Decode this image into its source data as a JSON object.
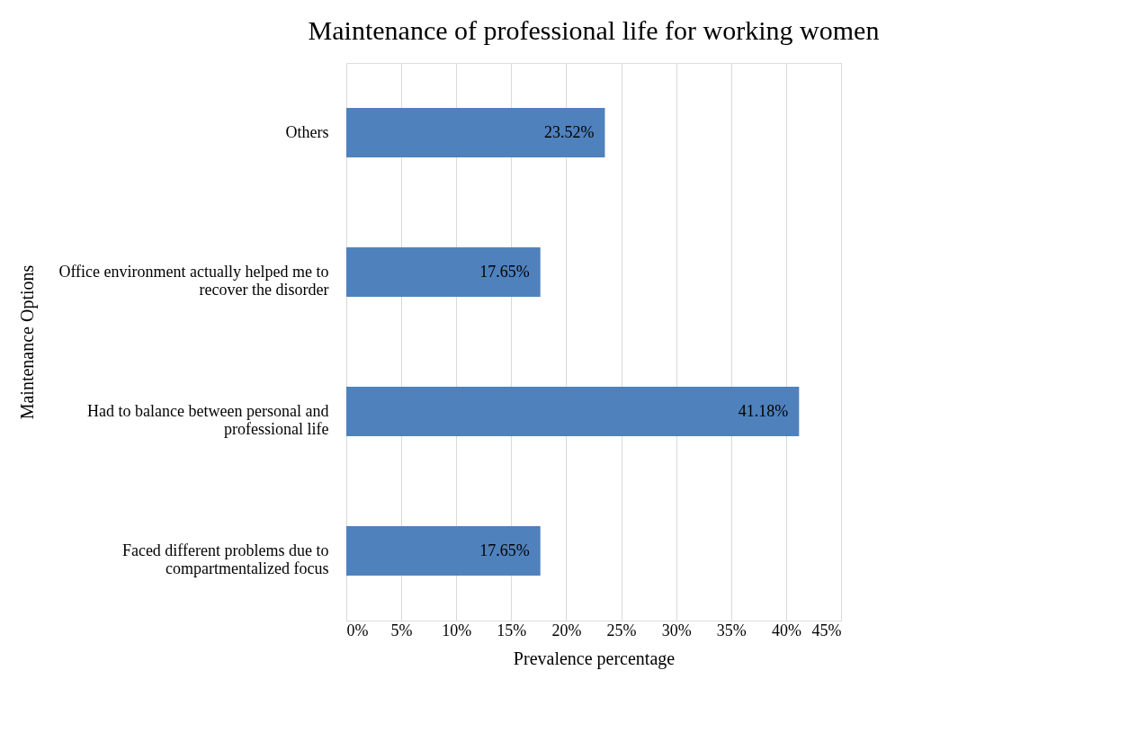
{
  "chart_data": {
    "type": "bar",
    "orientation": "horizontal",
    "title": "Maintenance of professional life for working women",
    "xlabel": "Prevalence percentage",
    "ylabel": "Maintenance Options",
    "categories": [
      "Others",
      "Office environment actually helped me to recover the disorder",
      "Had to balance between personal and professional life",
      "Faced different problems due to compartmentalized focus"
    ],
    "values": [
      23.52,
      17.65,
      41.18,
      17.65
    ],
    "value_labels": [
      "23.52%",
      "17.65%",
      "41.18%",
      "17.65%"
    ],
    "color": "#4f81bd",
    "xlim": [
      0,
      45
    ],
    "xticks": [
      {
        "value": 0,
        "label": "0%"
      },
      {
        "value": 5,
        "label": "5%"
      },
      {
        "value": 10,
        "label": "10%"
      },
      {
        "value": 15,
        "label": "15%"
      },
      {
        "value": 20,
        "label": "20%"
      },
      {
        "value": 25,
        "label": "25%"
      },
      {
        "value": 30,
        "label": "30%"
      },
      {
        "value": 35,
        "label": "35%"
      },
      {
        "value": 40,
        "label": "40%"
      },
      {
        "value": 45,
        "label": "45%"
      }
    ],
    "grid": "x"
  }
}
